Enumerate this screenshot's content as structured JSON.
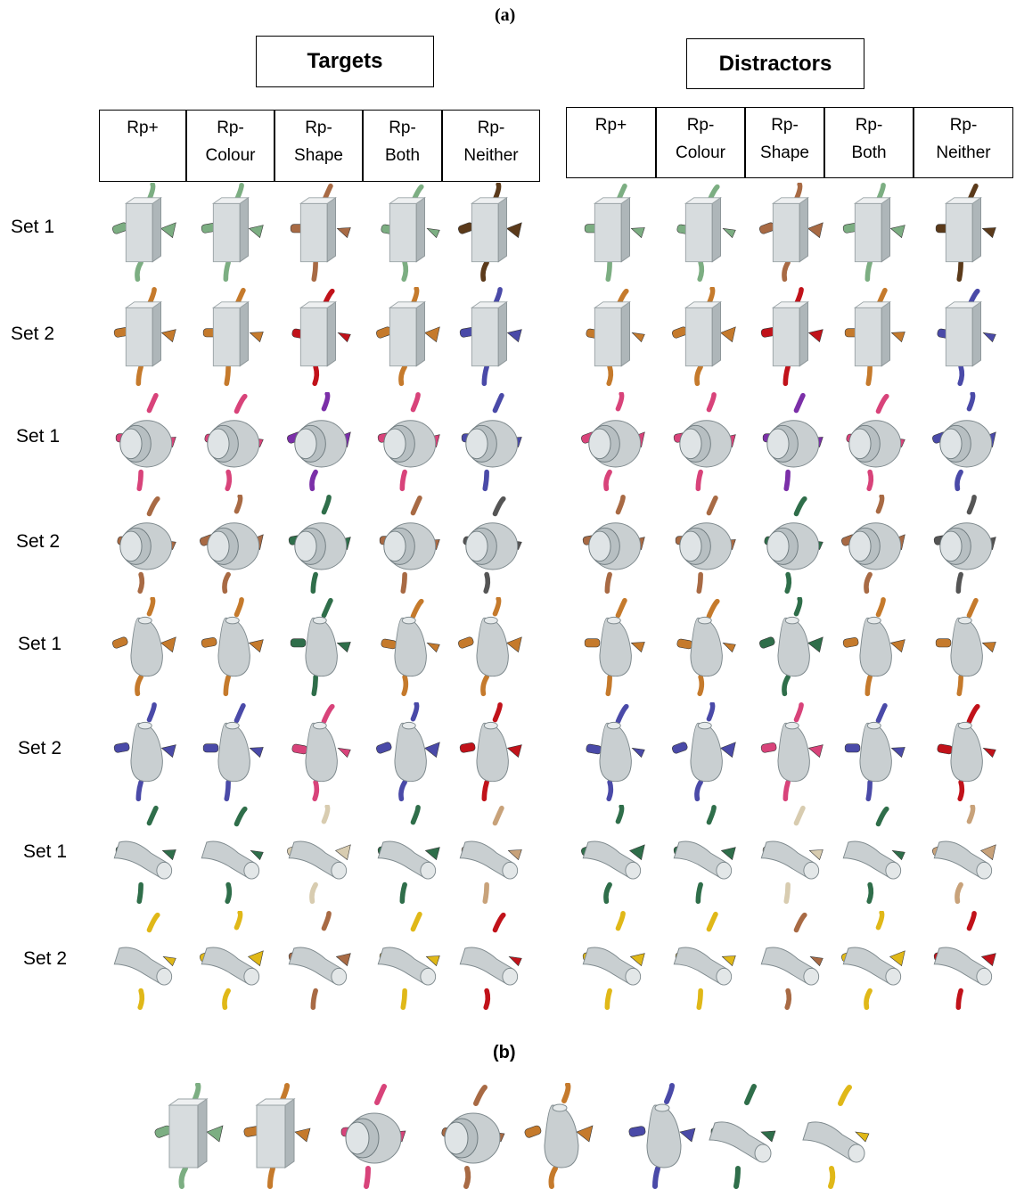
{
  "panel_a_label": "(a)",
  "panel_b_label": "(b)",
  "targets_title": "Targets",
  "distractors_title": "Distractors",
  "conditions": [
    "Rp+",
    "Rp-\nColour",
    "Rp-\nShape",
    "Rp-\nBoth",
    "Rp-\nNeither"
  ],
  "row_labels": [
    "Set 1",
    "Set 2",
    "Set 1",
    "Set 2",
    "Set 1",
    "Set 2",
    "Set 1",
    "Set 2"
  ],
  "colors": {
    "body": "#c9cfd1",
    "green": "#7cae82",
    "orange": "#c57a2c",
    "red": "#c1121a",
    "blue": "#4a4aa8",
    "pink": "#d8437a",
    "purple": "#7b2fa8",
    "brown": "#a86a44",
    "yellow": "#e0b818",
    "texture": "#2f6e4a"
  }
}
